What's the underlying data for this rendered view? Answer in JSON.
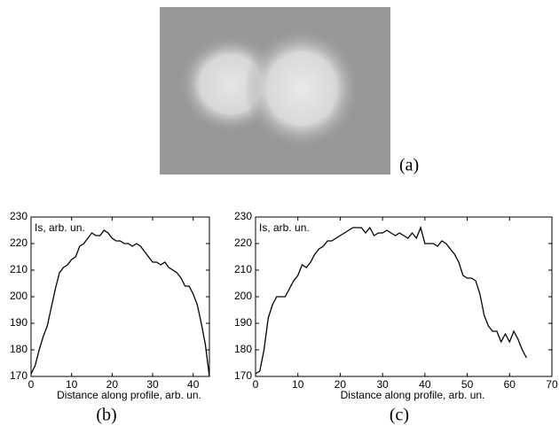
{
  "image_panel": {
    "label": "(a)"
  },
  "chart_data": [
    {
      "type": "line",
      "panel_label": "(b)",
      "ylabel": "Is, arb. un.",
      "xlabel": "Distance along profile, arb. un.",
      "x": [
        0,
        1,
        2,
        3,
        4,
        5,
        6,
        7,
        8,
        9,
        10,
        11,
        12,
        13,
        14,
        15,
        16,
        17,
        18,
        19,
        20,
        21,
        22,
        23,
        24,
        25,
        26,
        27,
        28,
        29,
        30,
        31,
        32,
        33,
        34,
        35,
        36,
        37,
        38,
        39,
        40,
        41,
        42,
        43,
        44
      ],
      "values": [
        171,
        174,
        180,
        185,
        189,
        196,
        203,
        209,
        211,
        212,
        214,
        215,
        219,
        220,
        222,
        224,
        223,
        223,
        225,
        224,
        222,
        221,
        221,
        220,
        220,
        219,
        220,
        219,
        217,
        215,
        213,
        213,
        212,
        213,
        211,
        210,
        209,
        207,
        204,
        204,
        201,
        197,
        190,
        182,
        170
      ],
      "color": "#000000",
      "xlim": [
        0,
        44
      ],
      "xticks": [
        0,
        10,
        20,
        30,
        40
      ],
      "ylim": [
        170,
        230
      ],
      "yticks": [
        170,
        180,
        190,
        200,
        210,
        220,
        230
      ],
      "grid": false
    },
    {
      "type": "line",
      "panel_label": "(c)",
      "ylabel": "Is, arb. un.",
      "xlabel": "Distance along profile, arb. un.",
      "x": [
        0,
        1,
        2,
        3,
        4,
        5,
        6,
        7,
        8,
        9,
        10,
        11,
        12,
        13,
        14,
        15,
        16,
        17,
        18,
        19,
        20,
        21,
        22,
        23,
        24,
        25,
        26,
        27,
        28,
        29,
        30,
        31,
        32,
        33,
        34,
        35,
        36,
        37,
        38,
        39,
        40,
        41,
        42,
        43,
        44,
        45,
        46,
        47,
        48,
        49,
        50,
        51,
        52,
        53,
        54,
        55,
        56,
        57,
        58,
        59,
        60,
        61,
        62,
        63,
        64
      ],
      "values": [
        171,
        172,
        180,
        192,
        197,
        200,
        200,
        200,
        203,
        206,
        208,
        212,
        211,
        213,
        216,
        218,
        219,
        221,
        221,
        222,
        223,
        224,
        225,
        226,
        226,
        226,
        224,
        226,
        223,
        224,
        224,
        225,
        224,
        223,
        224,
        223,
        222,
        224,
        222,
        226,
        220,
        220,
        220,
        219,
        221,
        220,
        218,
        216,
        213,
        208,
        207,
        207,
        206,
        201,
        193,
        189,
        187,
        187,
        183,
        186,
        183,
        187,
        184,
        180,
        177
      ],
      "color": "#000000",
      "xlim": [
        0,
        70
      ],
      "xticks": [
        0,
        10,
        20,
        30,
        40,
        50,
        60,
        70
      ],
      "ylim": [
        170,
        230
      ],
      "yticks": [
        170,
        180,
        190,
        200,
        210,
        220,
        230
      ],
      "grid": false
    }
  ]
}
